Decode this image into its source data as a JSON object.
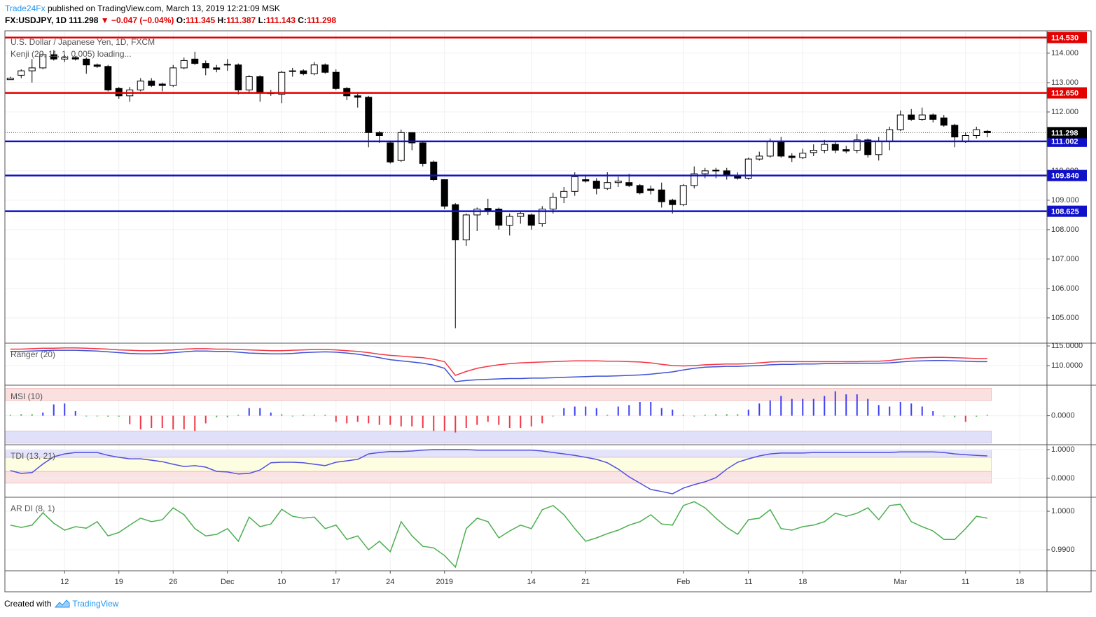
{
  "header": {
    "author": "Trade24Fx",
    "published": "published on TradingView.com, March 13, 2019 12:21:09 MSK",
    "symbol": "FX:USDJPY, 1D",
    "last": "111.298",
    "change": "▼ −0.047 (−0.04%)",
    "ohlc": [
      {
        "key": "O:",
        "value": "111.345"
      },
      {
        "key": "H:",
        "value": "111.387"
      },
      {
        "key": "L:",
        "value": "111.143"
      },
      {
        "key": "C:",
        "value": "111.298"
      }
    ]
  },
  "footer": {
    "text": "Created with",
    "brand": "TradingView"
  },
  "chart_data": [
    {
      "type": "candlestick",
      "title": "U.S. Dollar / Japanese Yen, 1D, FXCM",
      "subtitle": "Kenji (20, 11, 1, 0.005) loading...",
      "up_color": "#ffffff",
      "down_color": "#000000",
      "open": [
        113.1,
        113.25,
        113.4,
        113.5,
        113.95,
        113.8,
        113.85,
        113.8,
        113.6,
        113.55,
        112.8,
        112.55,
        112.75,
        113.05,
        112.95,
        112.9,
        113.5,
        113.8,
        113.65,
        113.5,
        113.6,
        113.6,
        112.75,
        113.2,
        112.65,
        112.6,
        113.38,
        113.4,
        113.3,
        113.6,
        113.35,
        112.8,
        112.55,
        112.5,
        111.3,
        110.95,
        110.35,
        111.3,
        110.95,
        110.3,
        109.7,
        108.85,
        107.65,
        108.5,
        108.72,
        108.7,
        108.15,
        108.45,
        108.5,
        108.2,
        108.7,
        109.1,
        109.3,
        109.7,
        109.65,
        109.4,
        109.6,
        109.6,
        109.5,
        109.38,
        109.35,
        109.0,
        108.85,
        109.5,
        109.9,
        110.0,
        110.0,
        109.85,
        109.75,
        110.4,
        110.5,
        111.0,
        110.5,
        110.45,
        110.62,
        110.7,
        110.9,
        110.72,
        110.7,
        111.05,
        110.55,
        111.0,
        111.4,
        111.9,
        111.75,
        111.9,
        111.8,
        111.55,
        111.0,
        111.2,
        111.345
      ],
      "high": [
        113.2,
        113.45,
        113.8,
        114.05,
        114.1,
        113.95,
        113.9,
        113.85,
        113.65,
        113.6,
        112.85,
        112.85,
        113.15,
        113.15,
        113.0,
        113.6,
        113.85,
        114.05,
        113.75,
        113.6,
        113.8,
        113.65,
        113.25,
        113.25,
        112.75,
        113.4,
        113.5,
        113.45,
        113.7,
        113.65,
        113.45,
        112.85,
        112.65,
        112.55,
        111.35,
        111.0,
        111.4,
        111.3,
        111.0,
        110.35,
        109.7,
        108.9,
        108.55,
        108.75,
        109.05,
        108.75,
        108.55,
        108.6,
        108.55,
        108.8,
        109.25,
        109.45,
        109.95,
        109.85,
        109.75,
        109.95,
        109.8,
        109.9,
        109.55,
        109.5,
        109.6,
        109.05,
        109.55,
        110.15,
        110.1,
        110.1,
        110.1,
        109.95,
        110.45,
        110.65,
        111.1,
        111.15,
        110.6,
        110.75,
        110.9,
        111.05,
        111.0,
        110.85,
        111.25,
        111.1,
        111.15,
        111.5,
        112.05,
        112.1,
        112.15,
        111.95,
        111.9,
        111.6,
        111.3,
        111.5,
        111.387
      ],
      "low": [
        113.1,
        113.15,
        113.0,
        113.45,
        113.75,
        113.7,
        113.75,
        113.3,
        113.5,
        112.7,
        112.45,
        112.35,
        112.7,
        112.85,
        112.7,
        112.85,
        113.45,
        113.6,
        113.25,
        113.35,
        113.4,
        112.6,
        112.65,
        112.35,
        112.55,
        112.3,
        113.2,
        113.25,
        113.25,
        113.3,
        112.75,
        112.4,
        112.15,
        110.8,
        110.95,
        110.25,
        110.3,
        110.7,
        110.15,
        109.65,
        108.7,
        104.65,
        107.45,
        107.95,
        108.5,
        108.0,
        107.8,
        108.2,
        108.0,
        108.1,
        108.55,
        108.9,
        109.15,
        109.6,
        109.2,
        109.35,
        109.45,
        109.45,
        109.2,
        109.2,
        108.75,
        108.55,
        108.8,
        109.4,
        109.75,
        109.75,
        109.7,
        109.7,
        109.7,
        110.35,
        110.45,
        110.45,
        110.3,
        110.4,
        110.5,
        110.6,
        110.6,
        110.6,
        110.6,
        110.45,
        110.35,
        110.7,
        111.35,
        111.7,
        111.7,
        111.65,
        111.5,
        110.8,
        110.95,
        111.1,
        111.143
      ],
      "close": [
        113.15,
        113.4,
        113.5,
        113.95,
        113.8,
        113.85,
        113.8,
        113.6,
        113.55,
        112.75,
        112.55,
        112.75,
        113.05,
        112.9,
        112.9,
        113.5,
        113.75,
        113.65,
        113.5,
        113.45,
        113.62,
        112.75,
        113.2,
        112.65,
        112.65,
        113.35,
        113.4,
        113.3,
        113.6,
        113.35,
        112.8,
        112.55,
        112.5,
        111.3,
        111.2,
        110.3,
        111.3,
        110.95,
        110.25,
        109.7,
        108.8,
        107.65,
        108.5,
        108.7,
        108.65,
        108.15,
        108.45,
        108.55,
        108.15,
        108.7,
        109.1,
        109.3,
        109.8,
        109.65,
        109.4,
        109.6,
        109.65,
        109.5,
        109.25,
        109.33,
        108.95,
        108.85,
        109.5,
        109.9,
        110.0,
        110.02,
        109.85,
        109.75,
        110.4,
        110.5,
        111.0,
        110.5,
        110.45,
        110.6,
        110.7,
        110.9,
        110.7,
        110.67,
        111.05,
        110.55,
        111.0,
        111.4,
        111.9,
        111.75,
        111.9,
        111.75,
        111.55,
        111.15,
        111.2,
        111.4,
        111.298
      ],
      "ylim": [
        104.14,
        114.76
      ],
      "yticks": [
        {
          "value": 105,
          "label": "105.000"
        },
        {
          "value": 106,
          "label": "106.000"
        },
        {
          "value": 107,
          "label": "107.000"
        },
        {
          "value": 108,
          "label": "108.000"
        },
        {
          "value": 109,
          "label": "109.000"
        },
        {
          "value": 110,
          "label": "110.000"
        },
        {
          "value": 111,
          "label": "111.000"
        },
        {
          "value": 112,
          "label": "112.000"
        },
        {
          "value": 113,
          "label": "113.000"
        },
        {
          "value": 114,
          "label": "114.000"
        }
      ],
      "xlim": [
        -0.5,
        95.5
      ],
      "xticks": [
        {
          "value": 5,
          "label": "12"
        },
        {
          "value": 10,
          "label": "19"
        },
        {
          "value": 15,
          "label": "26"
        },
        {
          "value": 20,
          "label": "Dec"
        },
        {
          "value": 25,
          "label": "10"
        },
        {
          "value": 30,
          "label": "17"
        },
        {
          "value": 35,
          "label": "24"
        },
        {
          "value": 40,
          "label": "2019"
        },
        {
          "value": 48,
          "label": "14"
        },
        {
          "value": 53,
          "label": "21"
        },
        {
          "value": 62,
          "label": "Feb"
        },
        {
          "value": 68,
          "label": "11"
        },
        {
          "value": 73,
          "label": "18"
        },
        {
          "value": 82,
          "label": "Mar"
        },
        {
          "value": 88,
          "label": "11"
        },
        {
          "value": 93,
          "label": "18"
        }
      ],
      "levels": [
        {
          "value": 114.53,
          "label": "114.530",
          "color": "#e50000"
        },
        {
          "value": 112.65,
          "label": "112.650",
          "color": "#e50000"
        },
        {
          "value": 111.002,
          "label": "111.002",
          "color": "#1010c8"
        },
        {
          "value": 109.84,
          "label": "109.840",
          "color": "#1010c8"
        },
        {
          "value": 108.625,
          "label": "108.625",
          "color": "#1010c8"
        }
      ],
      "last_price": {
        "value": 111.298,
        "label": "111.298",
        "color": "#000000"
      }
    },
    {
      "type": "line",
      "title": "Ranger (20)",
      "ylim": [
        105,
        115.71
      ],
      "yticks": [
        {
          "value": 115,
          "label": "115.0000"
        },
        {
          "value": 110,
          "label": "110.0000"
        }
      ],
      "series": [
        {
          "color": "#f23645",
          "values": [
            114.2,
            114.2,
            114.3,
            114.4,
            114.4,
            114.5,
            114.5,
            114.4,
            114.3,
            114.2,
            114.0,
            113.9,
            113.8,
            113.8,
            113.9,
            114.0,
            114.2,
            114.3,
            114.3,
            114.2,
            114.2,
            114.1,
            114.0,
            113.9,
            113.8,
            113.8,
            113.9,
            114.0,
            114.1,
            114.1,
            114.0,
            113.8,
            113.6,
            113.3,
            112.9,
            112.6,
            112.4,
            112.2,
            112.0,
            111.6,
            111.0,
            107.5,
            108.5,
            109.3,
            109.8,
            110.2,
            110.5,
            110.7,
            110.8,
            110.9,
            111.0,
            111.1,
            111.2,
            111.2,
            111.2,
            111.1,
            111.1,
            111.0,
            110.9,
            110.7,
            110.3,
            110.0,
            109.9,
            110.0,
            110.2,
            110.3,
            110.4,
            110.4,
            110.5,
            110.7,
            110.9,
            111.0,
            111.0,
            111.0,
            111.0,
            111.0,
            111.0,
            111.0,
            111.0,
            111.1,
            111.1,
            111.3,
            111.6,
            111.9,
            112.0,
            112.1,
            112.1,
            112.0,
            111.9,
            111.8,
            111.8
          ]
        },
        {
          "color": "#3f51d5",
          "values": [
            113.6,
            113.6,
            113.7,
            113.8,
            113.9,
            113.9,
            113.9,
            113.8,
            113.7,
            113.5,
            113.3,
            113.1,
            113.0,
            113.0,
            113.1,
            113.3,
            113.5,
            113.7,
            113.7,
            113.6,
            113.6,
            113.4,
            113.2,
            113.1,
            113.0,
            113.0,
            113.1,
            113.3,
            113.4,
            113.5,
            113.4,
            113.2,
            112.9,
            112.5,
            112.0,
            111.5,
            111.2,
            110.9,
            110.6,
            110.1,
            109.3,
            105.9,
            106.2,
            106.4,
            106.5,
            106.6,
            106.7,
            106.7,
            106.8,
            106.8,
            106.9,
            107.0,
            107.1,
            107.2,
            107.3,
            107.3,
            107.4,
            107.5,
            107.6,
            107.8,
            108.1,
            108.4,
            108.9,
            109.3,
            109.6,
            109.7,
            109.8,
            109.8,
            109.9,
            110.0,
            110.2,
            110.3,
            110.3,
            110.4,
            110.4,
            110.5,
            110.5,
            110.6,
            110.6,
            110.6,
            110.6,
            110.7,
            110.9,
            111.1,
            111.2,
            111.3,
            111.3,
            111.2,
            111.1,
            111.0,
            111.0
          ]
        }
      ]
    },
    {
      "type": "bar",
      "title": "MSI (10)",
      "ylim": [
        -0.95,
        1.0
      ],
      "yticks": [
        {
          "value": 0,
          "label": "0.0000"
        }
      ],
      "bands": [
        {
          "from": 0.5,
          "to": 0.9,
          "color": "#fbe0e0"
        },
        {
          "from": -0.9,
          "to": -0.5,
          "color": "#e0e0fb"
        }
      ],
      "up_color": "#3f3ff5",
      "down_color": "#f23645",
      "neutral_color": "#4caf50",
      "neutral_band": 0.05,
      "values": [
        0.03,
        0.05,
        0.05,
        0.1,
        0.37,
        0.4,
        0.15,
        0,
        0,
        -0.03,
        -0.03,
        -0.28,
        -0.45,
        -0.4,
        -0.4,
        -0.45,
        -0.45,
        -0.5,
        -0.25,
        -0.05,
        -0.05,
        0.03,
        0.25,
        0.25,
        0.1,
        0.05,
        0,
        0.03,
        0.03,
        0.03,
        -0.2,
        -0.25,
        -0.2,
        -0.25,
        -0.3,
        -0.3,
        -0.35,
        -0.35,
        -0.4,
        -0.5,
        -0.5,
        -0.55,
        -0.4,
        -0.3,
        -0.2,
        -0.3,
        -0.4,
        -0.4,
        -0.35,
        -0.25,
        0,
        0.25,
        0.3,
        0.3,
        0.25,
        0.03,
        0.3,
        0.35,
        0.45,
        0.45,
        0.25,
        0.2,
        0.03,
        0,
        0.03,
        0.05,
        0.05,
        0.05,
        0.2,
        0.4,
        0.5,
        0.65,
        0.55,
        0.55,
        0.55,
        0.65,
        0.8,
        0.7,
        0.7,
        0.55,
        0.35,
        0.3,
        0.45,
        0.4,
        0.3,
        0.15,
        0,
        -0.05,
        -0.2,
        -0.03,
        0.03
      ]
    },
    {
      "type": "line",
      "title": "TDI (13, 21)",
      "ylim": [
        -0.66,
        1.17
      ],
      "yticks": [
        {
          "value": 1,
          "label": "1.0000"
        },
        {
          "value": 0,
          "label": "0.0000"
        }
      ],
      "bands": [
        {
          "from": 0.73,
          "to": 1.0,
          "color": "#e3e3fb"
        },
        {
          "from": 0.24,
          "to": 0.73,
          "color": "#fdfde2"
        },
        {
          "from": -0.17,
          "to": 0.24,
          "color": "#fbe3e3"
        }
      ],
      "series": [
        {
          "color": "#5050e0",
          "values": [
            0.27,
            0.17,
            0.2,
            0.5,
            0.75,
            0.85,
            0.9,
            0.9,
            0.9,
            0.8,
            0.73,
            0.68,
            0.68,
            0.63,
            0.58,
            0.49,
            0.41,
            0.44,
            0.39,
            0.24,
            0.22,
            0.15,
            0.17,
            0.29,
            0.54,
            0.56,
            0.56,
            0.54,
            0.49,
            0.44,
            0.56,
            0.61,
            0.66,
            0.85,
            0.9,
            0.93,
            0.93,
            0.95,
            0.98,
            1.0,
            1.0,
            1.0,
            1.0,
            0.98,
            0.98,
            0.98,
            0.98,
            0.98,
            0.98,
            0.95,
            0.9,
            0.85,
            0.8,
            0.73,
            0.66,
            0.54,
            0.32,
            0.05,
            -0.17,
            -0.39,
            -0.46,
            -0.54,
            -0.34,
            -0.22,
            -0.12,
            0.02,
            0.32,
            0.56,
            0.68,
            0.78,
            0.85,
            0.88,
            0.88,
            0.88,
            0.9,
            0.9,
            0.9,
            0.9,
            0.9,
            0.9,
            0.9,
            0.9,
            0.92,
            0.92,
            0.92,
            0.92,
            0.9,
            0.85,
            0.82,
            0.8,
            0.78
          ]
        }
      ]
    },
    {
      "type": "line",
      "title": "AR DI (8, 1)",
      "ylim": [
        0.98455,
        1.00364
      ],
      "yticks": [
        {
          "value": 1,
          "label": "1.0000"
        },
        {
          "value": 0.99,
          "label": "0.9900"
        }
      ],
      "series": [
        {
          "color": "#4caf50",
          "values": [
            0.9964,
            0.9958,
            0.9964,
            0.9996,
            0.9969,
            0.9951,
            0.996,
            0.9956,
            0.9973,
            0.9936,
            0.9945,
            0.9964,
            0.9982,
            0.9973,
            0.9978,
            1.0009,
            0.9991,
            0.9955,
            0.9936,
            0.994,
            0.9955,
            0.9922,
            0.9985,
            0.996,
            0.9967,
            1.0005,
            0.9987,
            0.9982,
            0.9985,
            0.9955,
            0.9964,
            0.9927,
            0.9936,
            0.99,
            0.9922,
            0.9895,
            0.9973,
            0.9936,
            0.9909,
            0.9905,
            0.9885,
            0.9855,
            0.9955,
            0.9982,
            0.9973,
            0.9931,
            0.9949,
            0.9964,
            0.9955,
            1.0004,
            1.0015,
            0.9991,
            0.9955,
            0.9922,
            0.9931,
            0.9942,
            0.9951,
            0.9964,
            0.9973,
            0.9991,
            0.9967,
            0.9964,
            1.0015,
            1.0025,
            1.0009,
            0.9982,
            0.9958,
            0.994,
            0.9978,
            0.9982,
            1.0004,
            0.9955,
            0.9951,
            0.996,
            0.9964,
            0.9973,
            0.9995,
            0.9987,
            0.9995,
            1.0009,
            0.9978,
            1.0015,
            1.0018,
            0.9973,
            0.996,
            0.9949,
            0.9927,
            0.9927,
            0.9955,
            0.9987,
            0.9982
          ]
        }
      ]
    }
  ]
}
